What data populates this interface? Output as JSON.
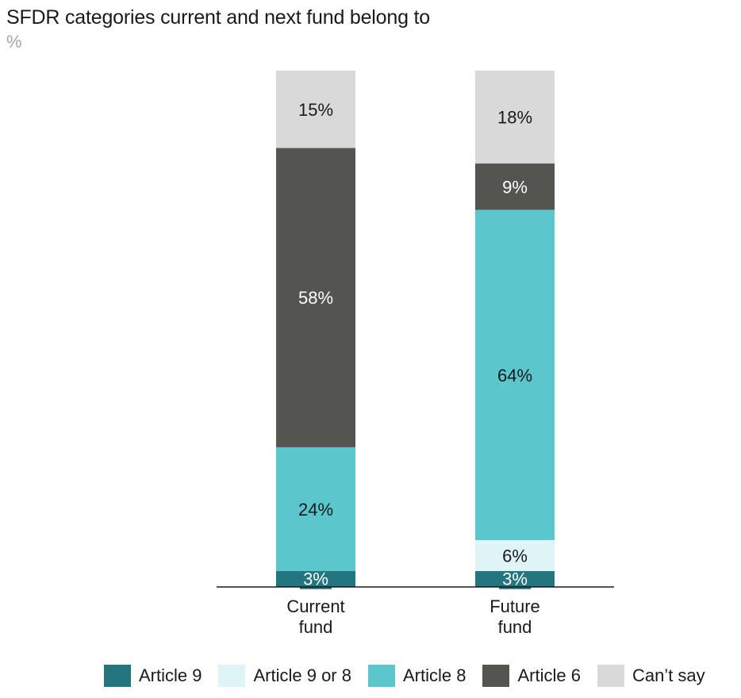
{
  "chart_data": {
    "type": "bar",
    "stacked": true,
    "title": "SFDR categories current and next fund belong to",
    "subtitle": "%",
    "categories": [
      "Current\nfund",
      "Future\nfund"
    ],
    "series": [
      {
        "name": "Article 9",
        "values": [
          3,
          3
        ],
        "labels": [
          "3%",
          "3%"
        ],
        "color": "#237580",
        "label_color": "#ffffff"
      },
      {
        "name": "Article 9 or 8",
        "values": [
          0,
          6
        ],
        "labels": [
          "",
          "6%"
        ],
        "color": "#def4f6",
        "label_color": "#1a1a1a"
      },
      {
        "name": "Article 8",
        "values": [
          24,
          64
        ],
        "labels": [
          "24%",
          "64%"
        ],
        "color": "#5bc6cb",
        "label_color": "#1a1a1a"
      },
      {
        "name": "Article 6",
        "values": [
          58,
          9
        ],
        "labels": [
          "58%",
          "9%"
        ],
        "color": "#545550",
        "label_color": "#ffffff"
      },
      {
        "name": "Can’t say",
        "values": [
          15,
          18
        ],
        "labels": [
          "15%",
          "18%"
        ],
        "color": "#d9d9d9",
        "label_color": "#1a1a1a"
      }
    ],
    "ylim": [
      0,
      100
    ],
    "grid": false,
    "legend_position": "bottom"
  }
}
